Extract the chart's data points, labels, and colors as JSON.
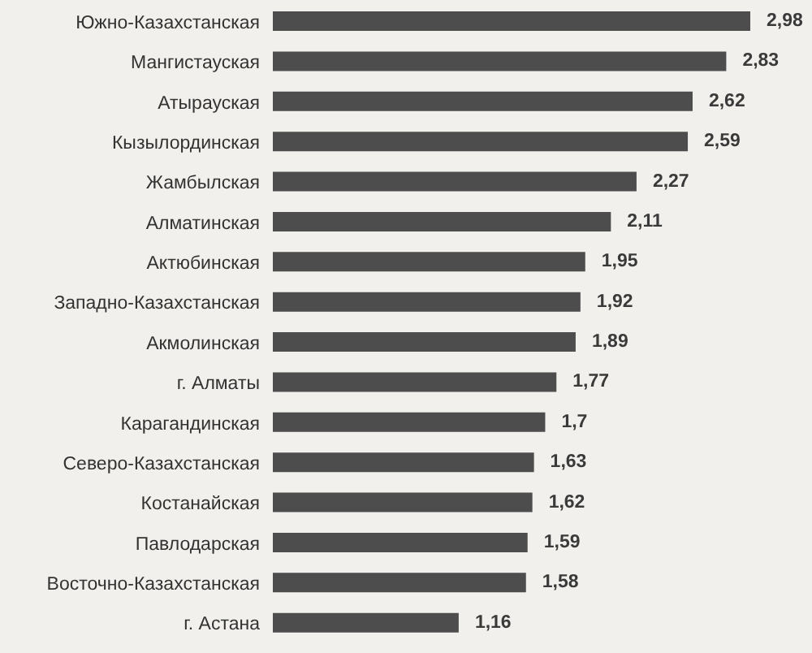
{
  "chart_data": {
    "type": "bar",
    "orientation": "horizontal",
    "categories": [
      "Южно-Казахстанская",
      "Мангистауская",
      "Атырауская",
      "Кызылординская",
      "Жамбылская",
      "Алматинская",
      "Актюбинская",
      "Западно-Казахстанская",
      "Акмолинская",
      "г. Алматы",
      "Карагандинская",
      "Северо-Казахстанская",
      "Костанайская",
      "Павлодарская",
      "Восточно-Казахстанская",
      "г. Астана"
    ],
    "values": [
      2.98,
      2.83,
      2.62,
      2.59,
      2.27,
      2.11,
      1.95,
      1.92,
      1.89,
      1.77,
      1.7,
      1.63,
      1.62,
      1.59,
      1.58,
      1.16
    ],
    "value_labels": [
      "2,98",
      "2,83",
      "2,62",
      "2,59",
      "2,27",
      "2,11",
      "1,95",
      "1,92",
      "1,89",
      "1,77",
      "1,7",
      "1,63",
      "1,62",
      "1,59",
      "1,58",
      "1,16"
    ],
    "color": "#4d4d4d",
    "tick_labels": "y"
  }
}
